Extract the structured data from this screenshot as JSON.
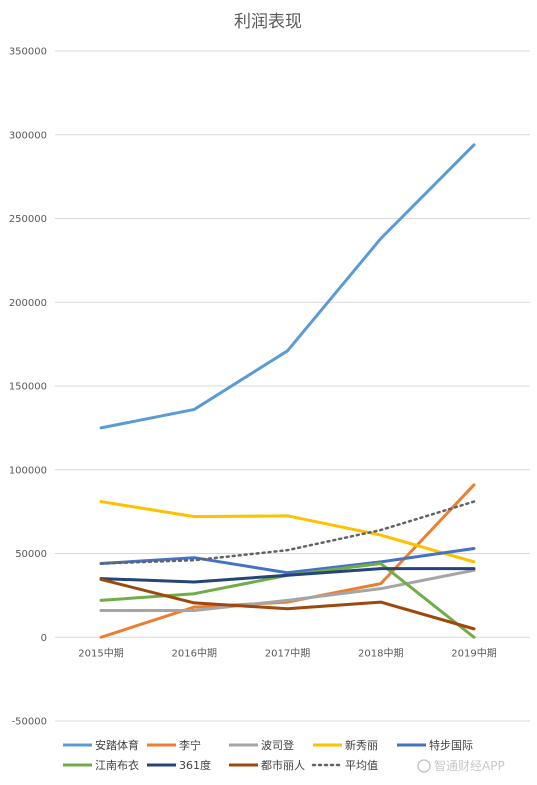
{
  "chart_data": {
    "type": "line",
    "title": "利润表现",
    "xlabel": "",
    "ylabel": "",
    "categories": [
      "2015中期",
      "2016中期",
      "2017中期",
      "2018中期",
      "2019中期"
    ],
    "ylim": [
      -50000,
      350000
    ],
    "yticks": [
      -50000,
      0,
      50000,
      100000,
      150000,
      200000,
      250000,
      300000,
      350000
    ],
    "grid": true,
    "legend_position": "bottom",
    "series": [
      {
        "name": "安踏体育",
        "color": "#5B9BD5",
        "dash": false,
        "values": [
          125000,
          136000,
          171000,
          238000,
          294000
        ]
      },
      {
        "name": "李宁",
        "color": "#ED7D31",
        "dash": false,
        "values": [
          0,
          18000,
          21000,
          32000,
          91000
        ]
      },
      {
        "name": "波司登",
        "color": "#A5A5A5",
        "dash": false,
        "values": [
          16000,
          16000,
          22000,
          29000,
          40000
        ]
      },
      {
        "name": "新秀丽",
        "color": "#FFC000",
        "dash": false,
        "values": [
          81000,
          72000,
          72500,
          61000,
          45000
        ]
      },
      {
        "name": "特步国际",
        "color": "#4472C4",
        "dash": false,
        "values": [
          44000,
          47500,
          38500,
          45000,
          53000
        ]
      },
      {
        "name": "江南布衣",
        "color": "#70AD47",
        "dash": false,
        "values": [
          22000,
          26000,
          37000,
          44000,
          0
        ]
      },
      {
        "name": "361度",
        "color": "#264478",
        "dash": false,
        "values": [
          35000,
          33000,
          37000,
          41000,
          41000
        ]
      },
      {
        "name": "都市丽人",
        "color": "#9E480E",
        "dash": false,
        "values": [
          34500,
          20500,
          17000,
          21000,
          5000
        ]
      },
      {
        "name": "平均值",
        "color": "#636363",
        "dash": true,
        "values": [
          44000,
          46000,
          52000,
          64000,
          81000
        ]
      }
    ]
  },
  "watermark": "智通财经APP"
}
